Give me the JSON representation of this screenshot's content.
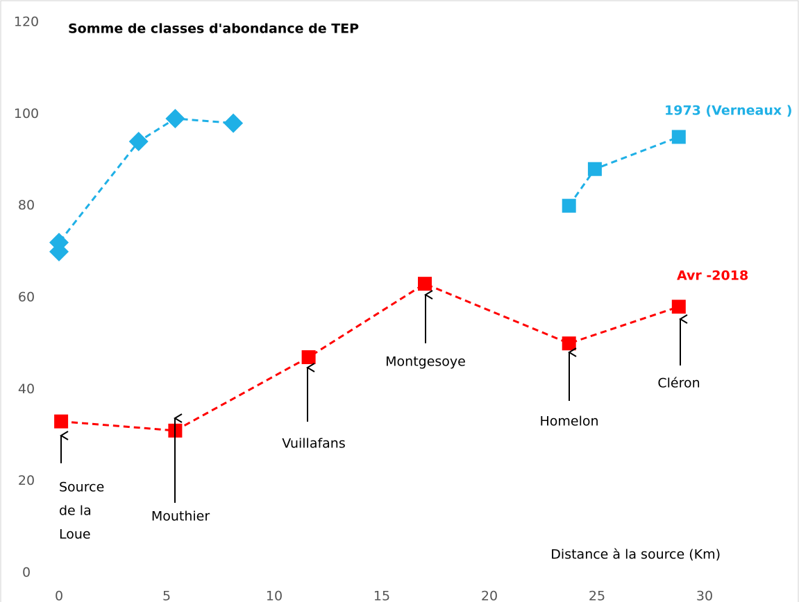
{
  "chart_data": {
    "type": "line",
    "title": "Somme de classes d'abondance de TEP",
    "x_label": "Distance à la source (Km)",
    "xlim": [
      0,
      30
    ],
    "xticks": [
      0,
      5,
      10,
      15,
      20,
      25,
      30
    ],
    "ylim": [
      0,
      120
    ],
    "yticks": [
      0,
      20,
      40,
      60,
      80,
      100,
      120
    ],
    "grid": false,
    "series": [
      {
        "name": "1973 (Verneaux )",
        "color": "#1fb0e6",
        "x": [
          0,
          0,
          3.7,
          5.4,
          8.1,
          null,
          23.7,
          24.9,
          28.8
        ],
        "values": [
          70,
          72,
          94,
          99,
          98,
          null,
          80,
          88,
          95
        ],
        "markers": [
          "diamond",
          "diamond",
          "diamond",
          "diamond",
          "diamond",
          null,
          "square",
          "square",
          "square"
        ]
      },
      {
        "name": "Avr -2018",
        "color": "#ff0000",
        "x": [
          0.1,
          5.4,
          11.6,
          17.0,
          23.7,
          28.8
        ],
        "values": [
          33,
          31,
          47,
          63,
          50,
          58
        ],
        "markers": [
          "square",
          "square",
          "square",
          "square",
          "square",
          "square"
        ]
      }
    ],
    "annotations": [
      [
        "Source",
        "de la",
        "Loue"
      ],
      [
        "Mouthier"
      ],
      [
        "Vuillafans"
      ],
      [
        "Montgesoye"
      ],
      [
        "Homelon"
      ],
      [
        "Cléron"
      ]
    ]
  }
}
